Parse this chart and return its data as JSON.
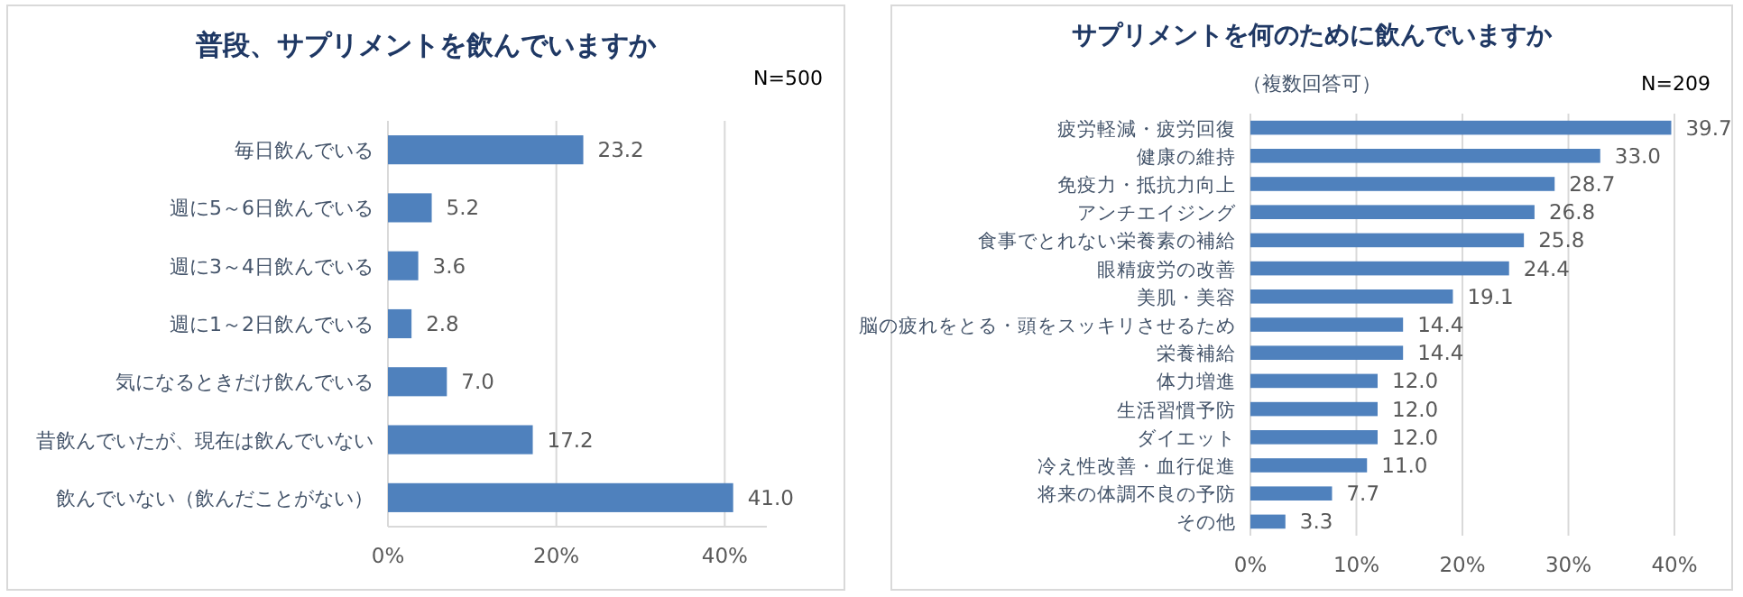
{
  "chart_data": [
    {
      "type": "bar",
      "orientation": "horizontal",
      "title": "普段、サプリメントを飲んでいますか",
      "annotations": [
        "N=500"
      ],
      "categories": [
        "毎日飲んでいる",
        "週に5～6日飲んでいる",
        "週に3～4日飲んでいる",
        "週に1～2日飲んでいる",
        "気になるときだけ飲んでいる",
        "昔飲んでいたが、現在は飲んでいない",
        "飲んでいない（飲んだことがない）"
      ],
      "values": [
        23.2,
        5.2,
        3.6,
        2.8,
        7.0,
        17.2,
        41.0
      ],
      "value_labels": [
        "23.2",
        "5.2",
        "3.6",
        "2.8",
        "7.0",
        "17.2",
        "41.0"
      ],
      "color": "#4f81bd",
      "xlim": [
        0,
        45
      ],
      "xticks": [
        {
          "value": 0,
          "label": "0%"
        },
        {
          "value": 20,
          "label": "20%"
        },
        {
          "value": 40,
          "label": "40%"
        }
      ],
      "grid": "x"
    },
    {
      "type": "bar",
      "orientation": "horizontal",
      "title": "サプリメントを何のために飲んでいますか",
      "subtitle": "（複数回答可）",
      "annotations": [
        "N=209"
      ],
      "categories": [
        "疲労軽減・疲労回復",
        "健康の維持",
        "免疫力・抵抗力向上",
        "アンチエイジング",
        "食事でとれない栄養素の補給",
        "眼精疲労の改善",
        "美肌・美容",
        "脳の疲れをとる・頭をスッキリさせるため",
        "栄養補給",
        "体力増進",
        "生活習慣予防",
        "ダイエット",
        "冷え性改善・血行促進",
        "将来の体調不良の予防",
        "その他"
      ],
      "values": [
        39.7,
        33.0,
        28.7,
        26.8,
        25.8,
        24.4,
        19.1,
        14.4,
        14.4,
        12.0,
        12.0,
        12.0,
        11.0,
        7.7,
        3.3
      ],
      "value_labels": [
        "39.7",
        "33.0",
        "28.7",
        "26.8",
        "25.8",
        "24.4",
        "19.1",
        "14.4",
        "14.4",
        "12.0",
        "12.0",
        "12.0",
        "11.0",
        "7.7",
        "3.3"
      ],
      "color": "#4f81bd",
      "xlim": [
        0,
        40
      ],
      "xticks": [
        {
          "value": 0,
          "label": "0%"
        },
        {
          "value": 10,
          "label": "10%"
        },
        {
          "value": 20,
          "label": "20%"
        },
        {
          "value": 30,
          "label": "30%"
        },
        {
          "value": 40,
          "label": "40%"
        }
      ],
      "grid": "x"
    }
  ]
}
